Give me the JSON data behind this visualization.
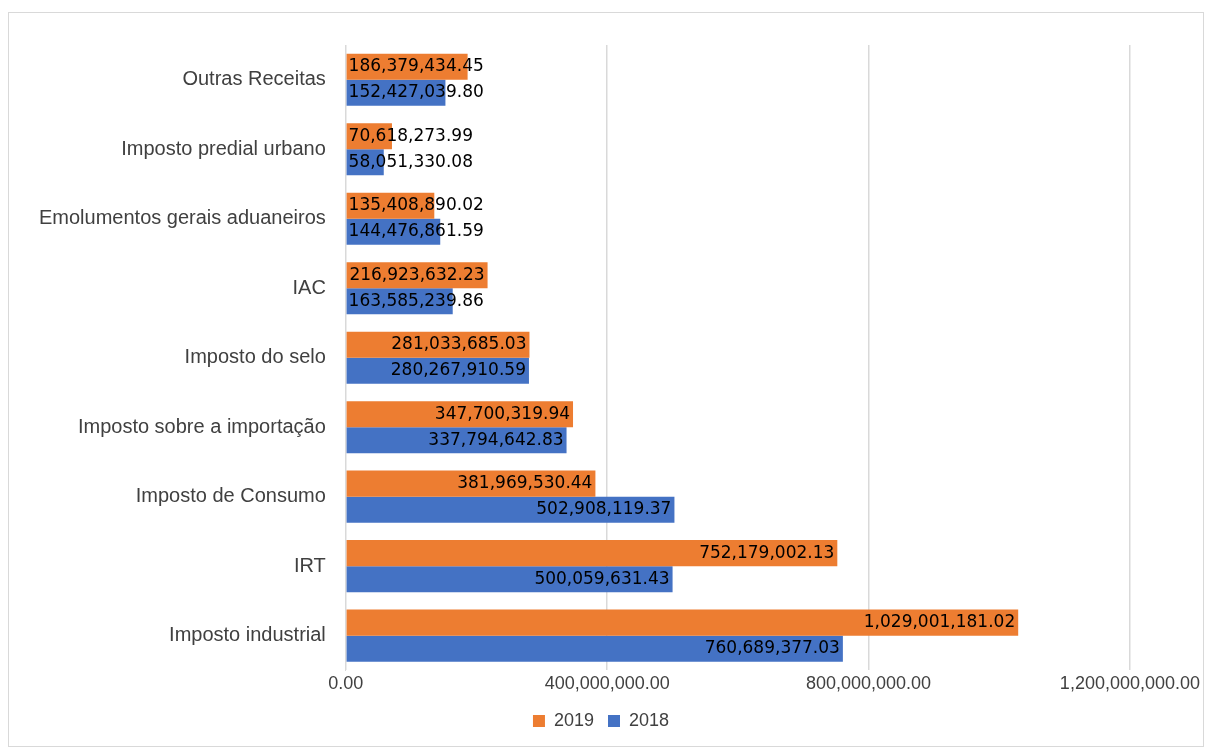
{
  "chart_data": {
    "type": "bar",
    "orientation": "horizontal",
    "categories": [
      "Outras Receitas",
      "Imposto predial urbano",
      "Emolumentos gerais aduaneiros",
      "IAC",
      "Imposto do selo",
      "Imposto sobre a importação",
      "Imposto de Consumo",
      "IRT",
      "Imposto industrial"
    ],
    "series": [
      {
        "name": "2019",
        "color": "#ed7d31",
        "values": [
          186379434.45,
          70618273.99,
          135408890.02,
          216923632.23,
          281033685.03,
          347700319.94,
          381969530.44,
          752179002.13,
          1029001181.02
        ],
        "value_labels": [
          "186,379,434.45",
          "70,618,273.99",
          "135,408,890.02",
          "216,923,632.23",
          "281,033,685.03",
          "347,700,319.94",
          "381,969,530.44",
          "752,179,002.13",
          "1,029,001,181.02"
        ]
      },
      {
        "name": "2018",
        "color": "#4472c4",
        "values": [
          152427039.8,
          58051330.08,
          144476861.59,
          163585239.86,
          280267910.59,
          337794642.83,
          502908119.37,
          500059631.43,
          760689377.03
        ],
        "value_labels": [
          "152,427,039.80",
          "58,051,330.08",
          "144,476,861.59",
          "163,585,239.86",
          "280,267,910.59",
          "337,794,642.83",
          "502,908,119.37",
          "500,059,631.43",
          "760,689,377.03"
        ]
      }
    ],
    "xlim": [
      0,
      1200000000
    ],
    "xticks": [
      {
        "value": 0,
        "label": "0.00"
      },
      {
        "value": 400000000,
        "label": "400,000,000.00"
      },
      {
        "value": 800000000,
        "label": "800,000,000.00"
      },
      {
        "value": 1200000000,
        "label": "1,200,000,000.00"
      }
    ],
    "grid": "x",
    "legend": "bottom"
  }
}
